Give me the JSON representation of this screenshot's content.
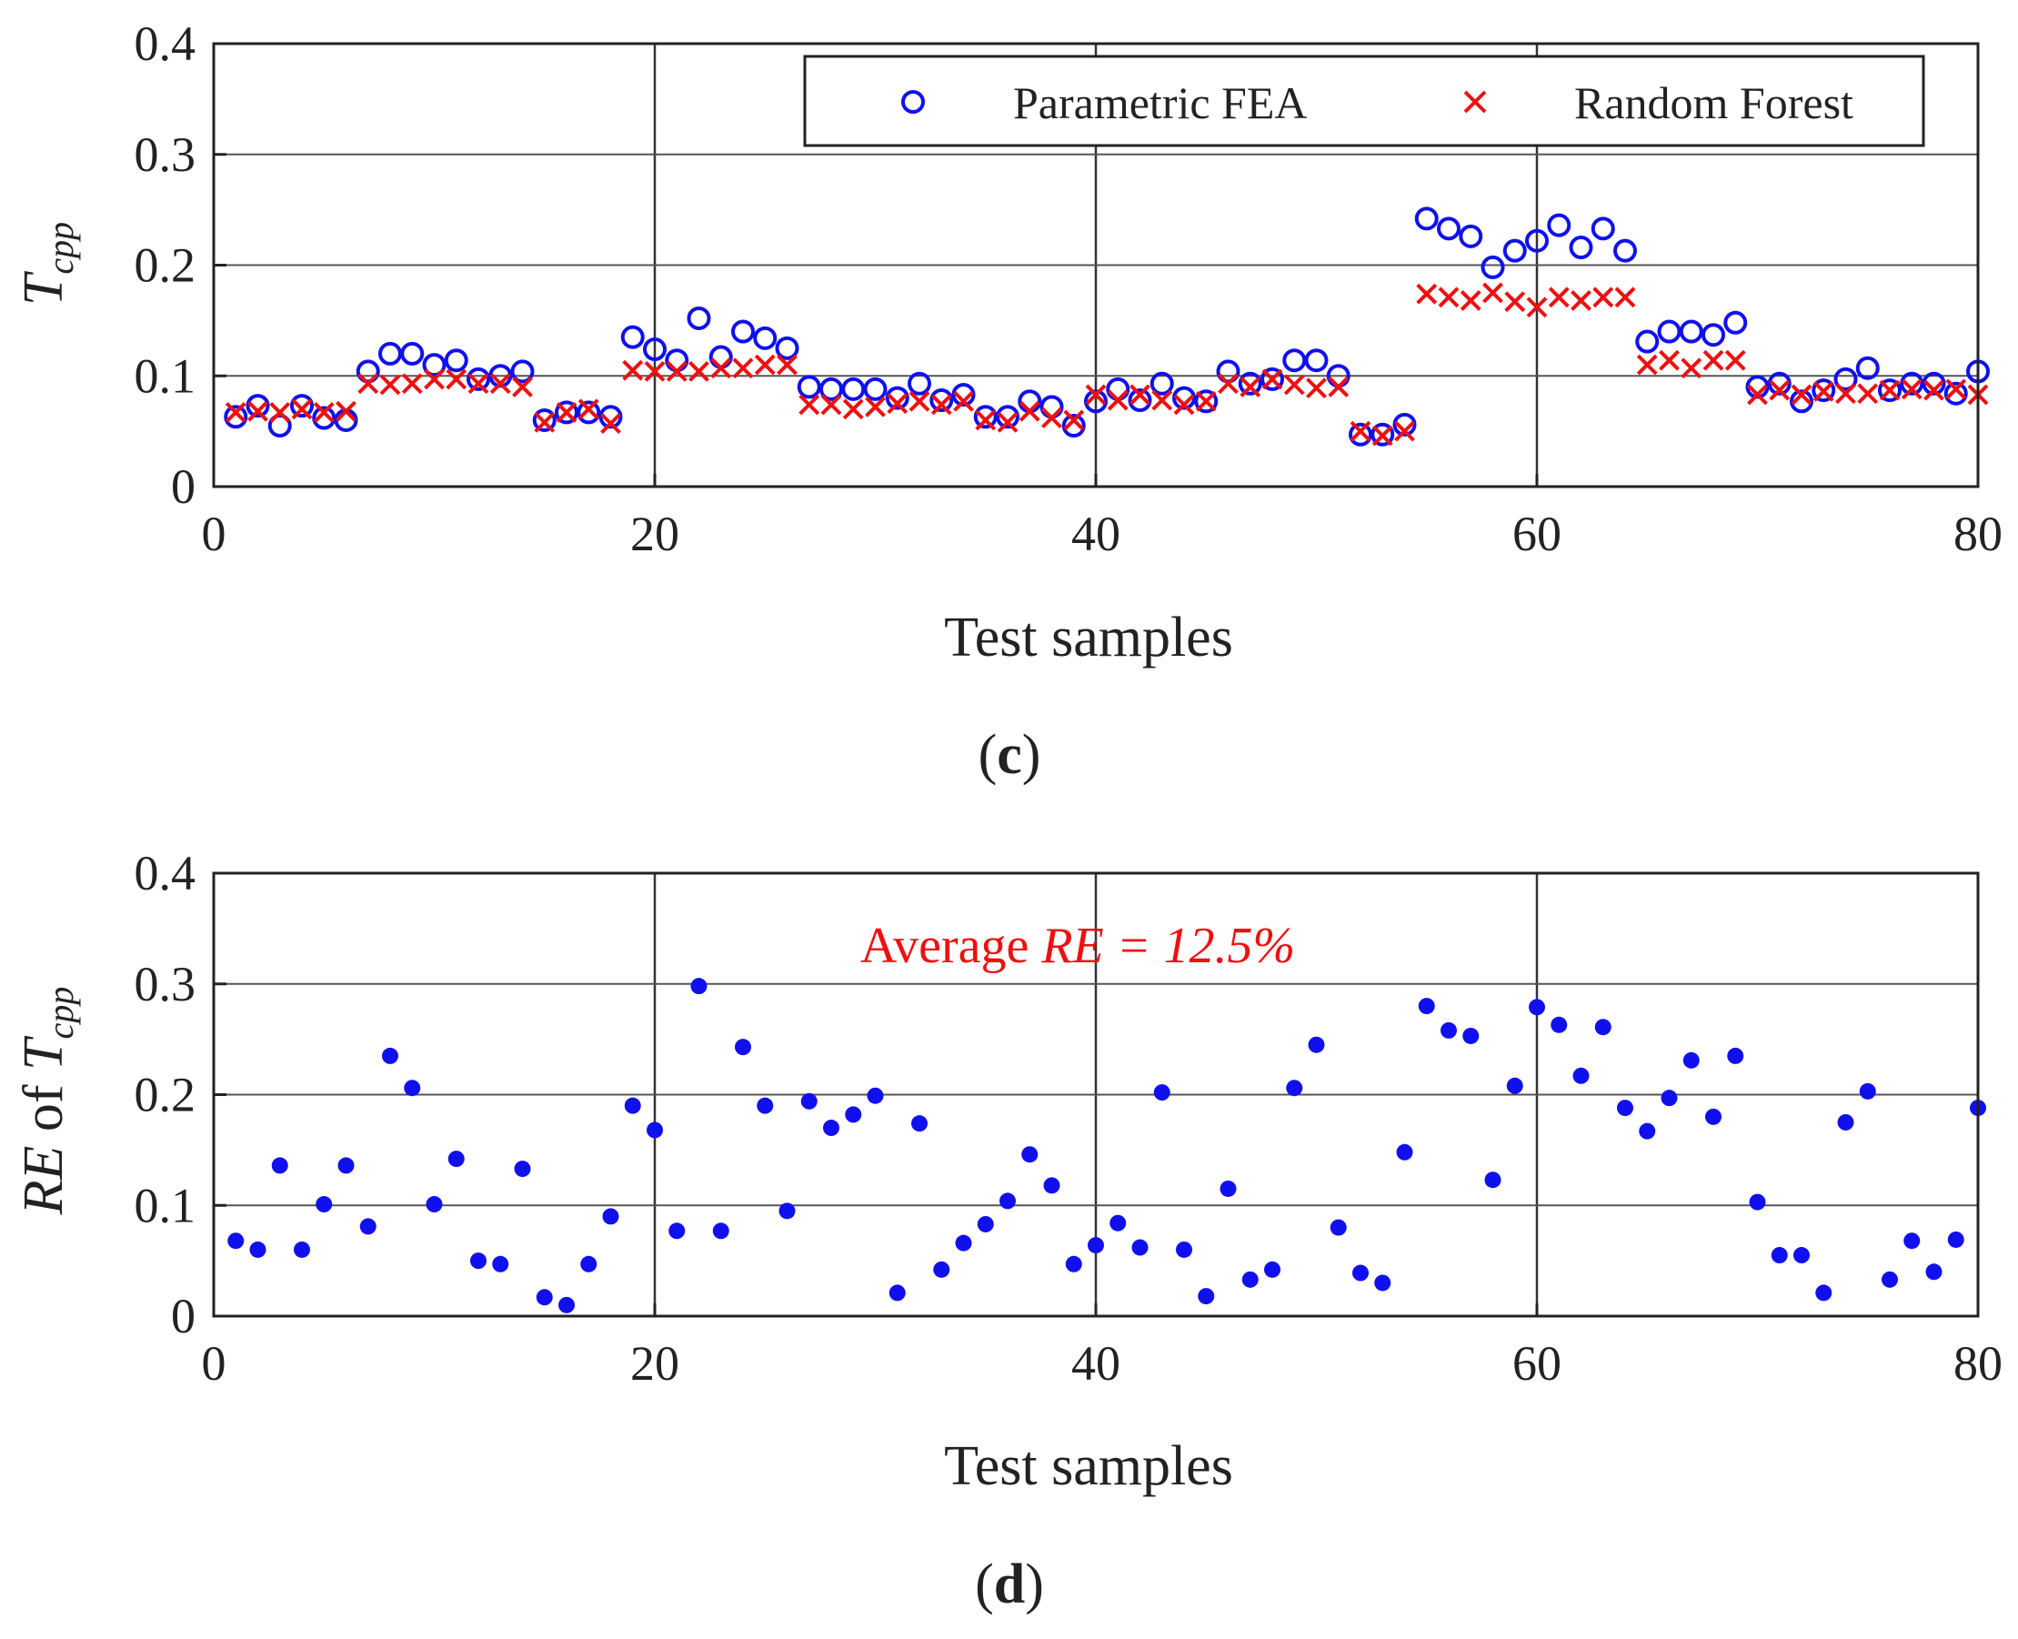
{
  "chart_data": [
    {
      "type": "scatter",
      "panel_label_prefix": "(",
      "panel_label_letter": "c",
      "panel_label_suffix": ")",
      "xlabel": "Test samples",
      "ylabel_main": "T",
      "ylabel_sub": "cpp",
      "xlim": [
        0,
        80
      ],
      "ylim": [
        0,
        0.4
      ],
      "xticks": [
        "0",
        "20",
        "40",
        "60",
        "80"
      ],
      "yticks": [
        "0",
        "0.1",
        "0.2",
        "0.3",
        "0.4"
      ],
      "grid": true,
      "legend_position": "top-right",
      "series": [
        {
          "name": "Parametric FEA",
          "marker": "circle-open",
          "color": "#1010ee",
          "x": [
            1,
            2,
            3,
            4,
            5,
            6,
            7,
            8,
            9,
            10,
            11,
            12,
            13,
            14,
            15,
            16,
            17,
            18,
            19,
            20,
            21,
            22,
            23,
            24,
            25,
            26,
            27,
            28,
            29,
            30,
            31,
            32,
            33,
            34,
            35,
            36,
            37,
            38,
            39,
            40,
            41,
            42,
            43,
            44,
            45,
            46,
            47,
            48,
            49,
            50,
            51,
            52,
            53,
            54,
            55,
            56,
            57,
            58,
            59,
            60,
            61,
            62,
            63,
            64,
            65,
            66,
            67,
            68,
            69,
            70,
            71,
            72,
            73,
            74,
            75,
            76,
            77,
            78,
            79,
            80
          ],
          "values": [
            0.063,
            0.073,
            0.055,
            0.073,
            0.062,
            0.06,
            0.104,
            0.12,
            0.12,
            0.11,
            0.114,
            0.097,
            0.1,
            0.104,
            0.06,
            0.067,
            0.067,
            0.063,
            0.135,
            0.124,
            0.114,
            0.152,
            0.117,
            0.14,
            0.134,
            0.125,
            0.09,
            0.088,
            0.088,
            0.088,
            0.08,
            0.093,
            0.078,
            0.083,
            0.063,
            0.063,
            0.077,
            0.072,
            0.055,
            0.077,
            0.088,
            0.078,
            0.093,
            0.08,
            0.077,
            0.104,
            0.093,
            0.097,
            0.114,
            0.114,
            0.1,
            0.047,
            0.047,
            0.056,
            0.242,
            0.233,
            0.226,
            0.198,
            0.213,
            0.222,
            0.236,
            0.216,
            0.233,
            0.213,
            0.131,
            0.14,
            0.14,
            0.137,
            0.148,
            0.09,
            0.093,
            0.077,
            0.087,
            0.097,
            0.107,
            0.087,
            0.093,
            0.093,
            0.084,
            0.104
          ]
        },
        {
          "name": "Random Forest",
          "marker": "x",
          "color": "#ee1010",
          "x": [
            1,
            2,
            3,
            4,
            5,
            6,
            7,
            8,
            9,
            10,
            11,
            12,
            13,
            14,
            15,
            16,
            17,
            18,
            19,
            20,
            21,
            22,
            23,
            24,
            25,
            26,
            27,
            28,
            29,
            30,
            31,
            32,
            33,
            34,
            35,
            36,
            37,
            38,
            39,
            40,
            41,
            42,
            43,
            44,
            45,
            46,
            47,
            48,
            49,
            50,
            51,
            52,
            53,
            54,
            55,
            56,
            57,
            58,
            59,
            60,
            61,
            62,
            63,
            64,
            65,
            66,
            67,
            68,
            69,
            70,
            71,
            72,
            73,
            74,
            75,
            76,
            77,
            78,
            79,
            80
          ],
          "values": [
            0.067,
            0.068,
            0.067,
            0.07,
            0.067,
            0.068,
            0.093,
            0.092,
            0.093,
            0.097,
            0.097,
            0.093,
            0.093,
            0.09,
            0.058,
            0.067,
            0.07,
            0.057,
            0.105,
            0.104,
            0.104,
            0.104,
            0.107,
            0.107,
            0.11,
            0.11,
            0.074,
            0.074,
            0.07,
            0.072,
            0.075,
            0.077,
            0.074,
            0.077,
            0.06,
            0.058,
            0.068,
            0.062,
            0.06,
            0.083,
            0.078,
            0.083,
            0.078,
            0.074,
            0.077,
            0.093,
            0.09,
            0.097,
            0.092,
            0.089,
            0.09,
            0.05,
            0.046,
            0.05,
            0.174,
            0.171,
            0.168,
            0.175,
            0.167,
            0.162,
            0.171,
            0.168,
            0.171,
            0.171,
            0.11,
            0.114,
            0.107,
            0.114,
            0.114,
            0.083,
            0.087,
            0.083,
            0.086,
            0.084,
            0.084,
            0.087,
            0.088,
            0.087,
            0.088,
            0.083
          ]
        }
      ]
    },
    {
      "type": "scatter",
      "panel_label_prefix": "(",
      "panel_label_letter": "d",
      "panel_label_suffix": ")",
      "xlabel": "Test samples",
      "ylabel_main": "RE",
      "ylabel_of": " of ",
      "ylabel_T": "T",
      "ylabel_sub": "cpp",
      "xlim": [
        0,
        80
      ],
      "ylim": [
        0,
        0.4
      ],
      "xticks": [
        "0",
        "20",
        "40",
        "60",
        "80"
      ],
      "yticks": [
        "0",
        "0.1",
        "0.2",
        "0.3",
        "0.4"
      ],
      "grid": true,
      "annotation_prefix": "Average ",
      "annotation_value": "RE = 12.5%",
      "annotation_color": "#ee1010",
      "series": [
        {
          "marker": "dot",
          "color": "#1010ee",
          "x": [
            1,
            2,
            3,
            4,
            5,
            6,
            7,
            8,
            9,
            10,
            11,
            12,
            13,
            14,
            15,
            16,
            17,
            18,
            19,
            20,
            21,
            22,
            23,
            24,
            25,
            26,
            27,
            28,
            29,
            30,
            31,
            32,
            33,
            34,
            35,
            36,
            37,
            38,
            39,
            40,
            41,
            42,
            43,
            44,
            45,
            46,
            47,
            48,
            49,
            50,
            51,
            52,
            53,
            54,
            55,
            56,
            57,
            58,
            59,
            60,
            61,
            62,
            63,
            64,
            65,
            66,
            67,
            68,
            69,
            70,
            71,
            72,
            73,
            74,
            75,
            76,
            77,
            78,
            79,
            80
          ],
          "values": [
            0.068,
            0.06,
            0.136,
            0.06,
            0.101,
            0.136,
            0.081,
            0.235,
            0.206,
            0.101,
            0.142,
            0.05,
            0.047,
            0.133,
            0.017,
            0.01,
            0.047,
            0.09,
            0.19,
            0.168,
            0.077,
            0.298,
            0.077,
            0.243,
            0.19,
            0.095,
            0.194,
            0.17,
            0.182,
            0.199,
            0.021,
            0.174,
            0.042,
            0.066,
            0.083,
            0.104,
            0.146,
            0.118,
            0.047,
            0.064,
            0.084,
            0.062,
            0.202,
            0.06,
            0.018,
            0.115,
            0.033,
            0.042,
            0.206,
            0.245,
            0.08,
            0.039,
            0.03,
            0.148,
            0.28,
            0.258,
            0.253,
            0.123,
            0.208,
            0.279,
            0.263,
            0.217,
            0.261,
            0.188,
            0.167,
            0.197,
            0.231,
            0.18,
            0.235,
            0.103,
            0.055,
            0.055,
            0.021,
            0.175,
            0.203,
            0.033,
            0.068,
            0.04,
            0.069,
            0.188
          ]
        }
      ]
    }
  ]
}
